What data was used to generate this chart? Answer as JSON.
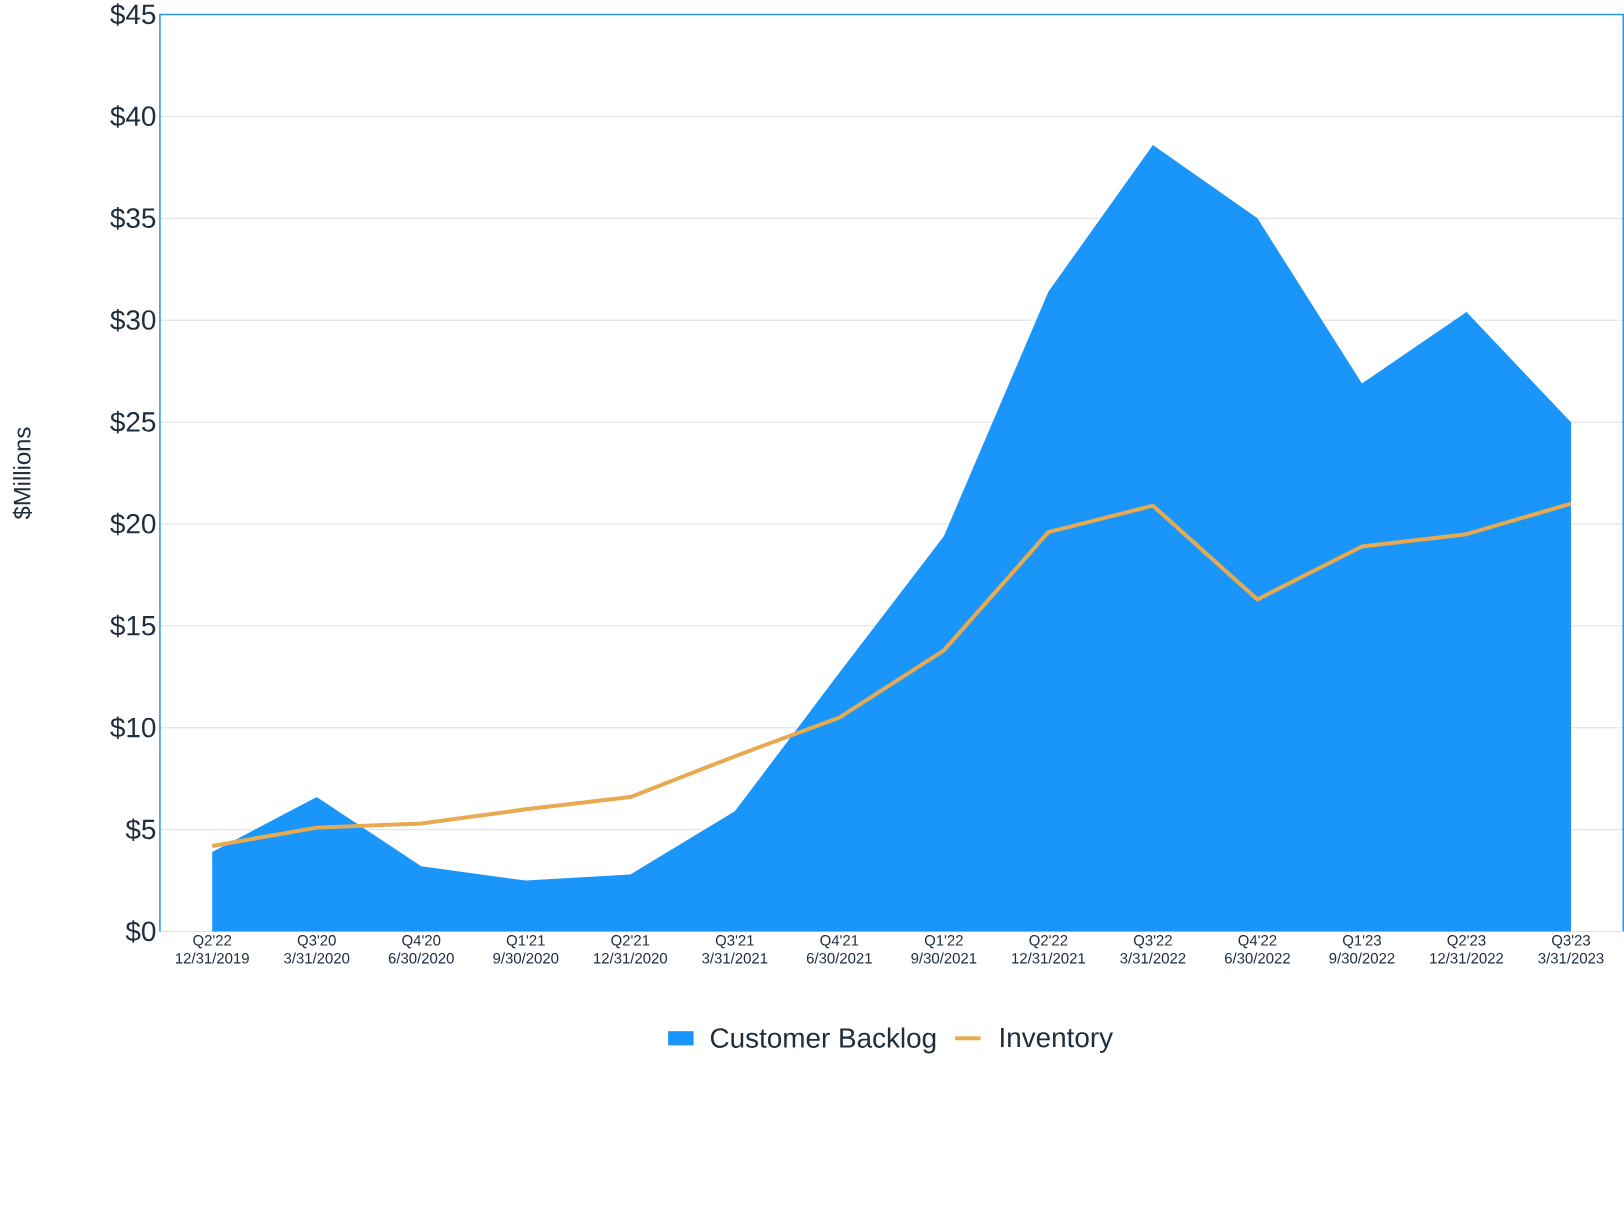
{
  "chart_data": {
    "type": "area",
    "ylabel": "$Millions",
    "categories": [
      "Q2'22\n12/31/2019",
      "Q3'20\n3/31/2020",
      "Q4'20\n6/30/2020",
      "Q1'21\n9/30/2020",
      "Q2'21\n12/31/2020",
      "Q3'21\n3/31/2021",
      "Q4'21\n6/30/2021",
      "Q1'22\n9/30/2021",
      "Q2'22\n12/31/2021",
      "Q3'22\n3/31/2022",
      "Q4'22\n6/30/2022",
      "Q1'23\n9/30/2022",
      "Q2'23\n12/31/2022",
      "Q3'23\n3/31/2023"
    ],
    "series": [
      {
        "name": "Customer Backlog",
        "color": "#1a96fa",
        "values": [
          3.9,
          6.6,
          3.2,
          2.5,
          2.8,
          5.9,
          12.7,
          19.4,
          31.4,
          38.6,
          35.0,
          26.9,
          30.4,
          25.0
        ]
      },
      {
        "name": "Inventory",
        "type": "line",
        "color": "#e8aa50",
        "values": [
          4.2,
          5.1,
          5.3,
          6.0,
          6.6,
          8.6,
          10.5,
          13.8,
          19.6,
          20.9,
          16.3,
          18.9,
          19.5,
          21.0
        ]
      }
    ],
    "ylim": [
      0,
      45
    ],
    "yticks": [
      {
        "value": 0,
        "label": "$0"
      },
      {
        "value": 5,
        "label": "$5"
      },
      {
        "value": 10,
        "label": "$10"
      },
      {
        "value": 15,
        "label": "$15"
      },
      {
        "value": 20,
        "label": "$20"
      },
      {
        "value": 25,
        "label": "$25"
      },
      {
        "value": 30,
        "label": "$30"
      },
      {
        "value": 35,
        "label": "$35"
      },
      {
        "value": 40,
        "label": "$40"
      },
      {
        "value": 45,
        "label": "$45"
      }
    ],
    "grid": "y",
    "legend": "bottom"
  }
}
